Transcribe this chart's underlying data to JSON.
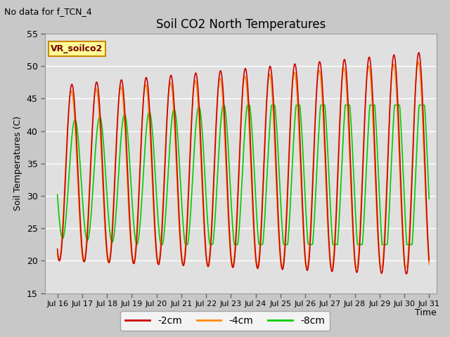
{
  "title": "Soil CO2 North Temperatures",
  "top_left_text": "No data for f_TCN_4",
  "ylabel": "Soil Temperatures (C)",
  "xlabel": "Time",
  "ylim": [
    15,
    55
  ],
  "xlim_days": [
    15.5,
    31.3
  ],
  "fig_bg_color": "#c8c8c8",
  "plot_bg_color": "#e0e0e0",
  "grid_color": "white",
  "legend_label": "VR_soilco2",
  "legend_bg": "#ffff99",
  "legend_border": "#cc8800",
  "series": {
    "-2cm": {
      "color": "#cc0000",
      "label": "-2cm"
    },
    "-4cm": {
      "color": "#ff8800",
      "label": "-4cm"
    },
    "-8cm": {
      "color": "#00cc00",
      "label": "-8cm"
    }
  },
  "yticks": [
    15,
    20,
    25,
    30,
    35,
    40,
    45,
    50,
    55
  ],
  "xtick_days": [
    16,
    17,
    18,
    19,
    20,
    21,
    22,
    23,
    24,
    25,
    26,
    27,
    28,
    29,
    30,
    31
  ],
  "xtick_labels": [
    "Jul 16",
    "Jul 17",
    "Jul 18",
    "Jul 19",
    "Jul 20",
    "Jul 21",
    "Jul 22",
    "Jul 23",
    "Jul 24",
    "Jul 25",
    "Jul 26",
    "Jul 27",
    "Jul 28",
    "Jul 29",
    "Jul 30",
    "Jul 31"
  ]
}
